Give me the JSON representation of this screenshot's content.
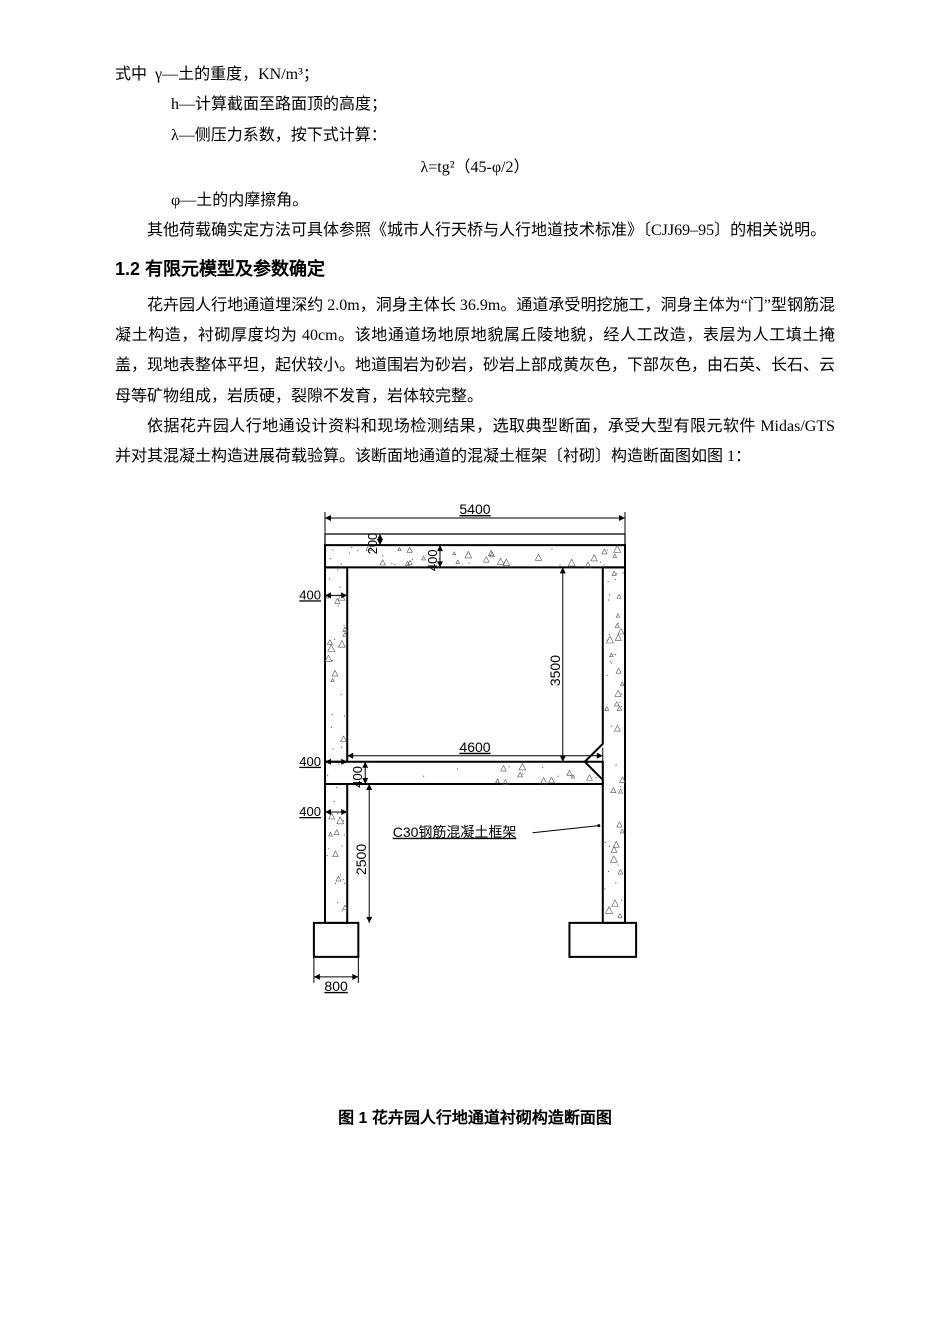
{
  "definitions": {
    "line1_prefix": "式中",
    "gamma": "γ—土的重度，KN/m³；",
    "h": "h—计算截面至路面顶的高度；",
    "lambda": "λ—侧压力系数，按下式计算：",
    "formula": "λ=tg²（45-φ/2）",
    "phi": "φ—土的内摩擦角。"
  },
  "reference_sentence": "其他荷载确实定方法可具体参照《城市人行天桥与人行地道技术标准》〔CJJ69–95〕的相关说明。",
  "section_heading": "1.2 有限元模型及参数确定",
  "para1": "花卉园人行地通道埋深约 2.0m，洞身主体长 36.9m。通道承受明挖施工，洞身主体为“门”型钢筋混凝土构造，衬砌厚度均为 40cm。该地通道场地原地貌属丘陵地貌，经人工改造，表层为人工填土掩盖，现地表整体平坦，起伏较小。地道围岩为砂岩，砂岩上部成黄灰色，下部灰色，由石英、长石、云母等矿物组成，岩质硬，裂隙不发育，岩体较完整。",
  "para2": "依据花卉园人行地通设计资料和现场检测结果，选取典型断面，承受大型有限元软件 Midas/GTS 并对其混凝土构造进展荷载验算。该断面地通道的混凝土框架〔衬砌〕构造断面图如图 1：",
  "figure": {
    "caption": "图 1 花卉园人行地通道衬砌构造断面图",
    "label_material": "C30钢筋混凝土框架",
    "dimensions": {
      "top_outer": "5400",
      "top_header": "200",
      "roof_thick": "400",
      "left_wall_thick_1": "400",
      "left_wall_thick_2": "400",
      "left_wall_thick_3": "400",
      "inner_width": "4600",
      "upper_height": "3500",
      "lower_height": "2500",
      "footing_width": "800"
    },
    "colors": {
      "line": "#000000",
      "dim_text": "#000000",
      "hatch": "#555555"
    },
    "line_widths": {
      "outline": 2,
      "dim": 1
    }
  }
}
